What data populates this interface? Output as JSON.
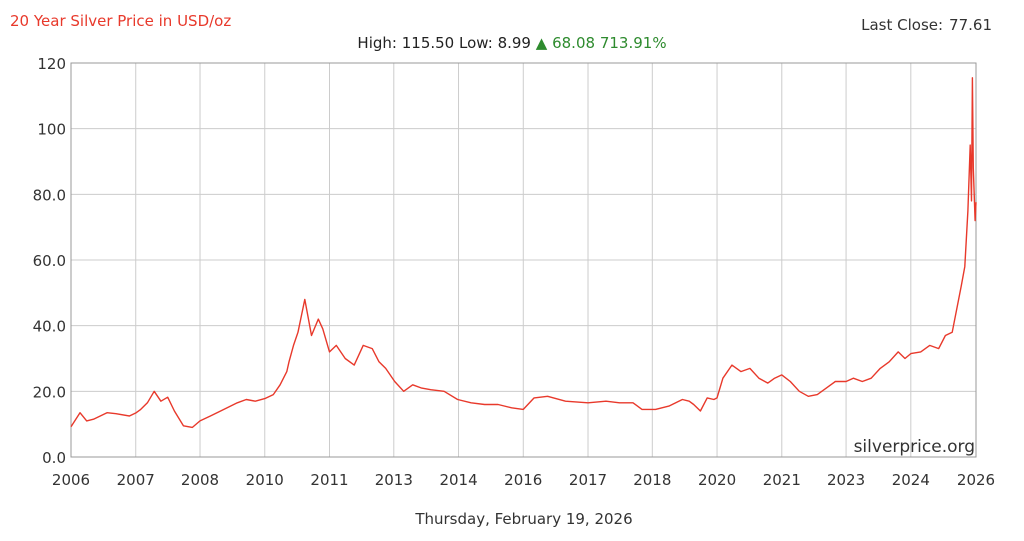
{
  "header": {
    "title": "20 Year Silver Price in USD/oz",
    "last_close_label": "Last Close:",
    "last_close_value": "77.61",
    "high_label": "High:",
    "high_value": "115.50",
    "low_label": "Low:",
    "low_value": "8.99",
    "change_arrow": "▲",
    "change_value": "68.08",
    "change_pct": "713.91%"
  },
  "footer": {
    "date": "Thursday, February 19, 2026"
  },
  "watermark": "silverprice.org",
  "colors": {
    "line": "#e8392b",
    "grid": "#cccccc",
    "up": "#2e8b2e",
    "title": "#e8392b"
  },
  "chart_data": {
    "type": "line",
    "title": "20 Year Silver Price in USD/oz",
    "xlabel": "",
    "ylabel": "",
    "ylim": [
      0,
      120
    ],
    "xlim": [
      2006.0,
      2026.13
    ],
    "yticks": [
      0,
      20,
      40,
      60,
      80,
      100,
      120
    ],
    "ytick_labels": [
      "0.0",
      "20.0",
      "40.0",
      "60.0",
      "80.0",
      "100",
      "120"
    ],
    "xticks": [
      2006.0,
      2007.44,
      2008.87,
      2010.31,
      2011.75,
      2013.18,
      2014.62,
      2016.06,
      2017.5,
      2018.93,
      2020.37,
      2021.81,
      2023.24,
      2024.68,
      2026.13
    ],
    "xtick_labels": [
      "2006",
      "2007",
      "2008",
      "2010",
      "2011",
      "2013",
      "2014",
      "2016",
      "2017",
      "2018",
      "2020",
      "2021",
      "2023",
      "2024",
      "2026"
    ],
    "grid": true,
    "series": [
      {
        "values_note": "",
        "x": [
          2006.0,
          2006.2,
          2006.35,
          2006.5,
          2006.8,
          2007.0,
          2007.3,
          2007.45,
          2007.55,
          2007.7,
          2007.85,
          2008.0,
          2008.15,
          2008.3,
          2008.5,
          2008.7,
          2008.87,
          2009.1,
          2009.4,
          2009.7,
          2009.9,
          2010.1,
          2010.31,
          2010.5,
          2010.65,
          2010.8,
          2010.85,
          2010.95,
          2011.05,
          2011.2,
          2011.35,
          2011.5,
          2011.6,
          2011.75,
          2011.9,
          2012.1,
          2012.3,
          2012.5,
          2012.7,
          2012.85,
          2013.0,
          2013.2,
          2013.4,
          2013.6,
          2013.8,
          2014.0,
          2014.3,
          2014.6,
          2014.9,
          2015.2,
          2015.5,
          2015.8,
          2016.06,
          2016.3,
          2016.6,
          2017.0,
          2017.5,
          2017.9,
          2018.2,
          2018.5,
          2018.7,
          2019.0,
          2019.3,
          2019.6,
          2019.75,
          2019.85,
          2020.0,
          2020.15,
          2020.3,
          2020.37,
          2020.5,
          2020.7,
          2020.9,
          2021.1,
          2021.3,
          2021.5,
          2021.65,
          2021.81,
          2022.0,
          2022.2,
          2022.4,
          2022.6,
          2022.8,
          2023.0,
          2023.24,
          2023.4,
          2023.6,
          2023.8,
          2024.0,
          2024.2,
          2024.4,
          2024.55,
          2024.68,
          2024.9,
          2025.1,
          2025.3,
          2025.45,
          2025.6,
          2025.7,
          2025.8,
          2025.88,
          2025.95,
          2026.0,
          2026.03,
          2026.05,
          2026.07,
          2026.09,
          2026.11,
          2026.13
        ],
        "y": [
          9.2,
          13.5,
          11.0,
          11.5,
          13.5,
          13.2,
          12.5,
          13.5,
          14.5,
          16.5,
          20.0,
          17.0,
          18.2,
          14.0,
          9.5,
          9.0,
          11.0,
          12.5,
          14.5,
          16.5,
          17.5,
          17.0,
          17.8,
          19.0,
          22.0,
          26.0,
          29.0,
          34.0,
          38.0,
          48.0,
          37.0,
          42.0,
          39.0,
          32.0,
          34.0,
          30.0,
          28.0,
          34.0,
          33.0,
          29.0,
          27.0,
          23.0,
          20.0,
          22.0,
          21.0,
          20.5,
          20.0,
          17.5,
          16.5,
          16.0,
          16.0,
          15.0,
          14.5,
          18.0,
          18.5,
          17.0,
          16.5,
          17.0,
          16.5,
          16.5,
          14.5,
          14.5,
          15.5,
          17.5,
          17.0,
          16.0,
          14.0,
          18.0,
          17.5,
          18.0,
          24.0,
          28.0,
          26.0,
          27.0,
          24.0,
          22.5,
          24.0,
          25.0,
          23.0,
          20.0,
          18.5,
          19.0,
          21.0,
          23.0,
          23.0,
          24.0,
          23.0,
          24.0,
          27.0,
          29.0,
          32.0,
          30.0,
          31.5,
          32.0,
          34.0,
          33.0,
          37.0,
          38.0,
          45.0,
          52.0,
          58.0,
          75.0,
          95.0,
          78.0,
          115.5,
          88.0,
          80.0,
          72.0,
          77.61
        ]
      }
    ]
  }
}
